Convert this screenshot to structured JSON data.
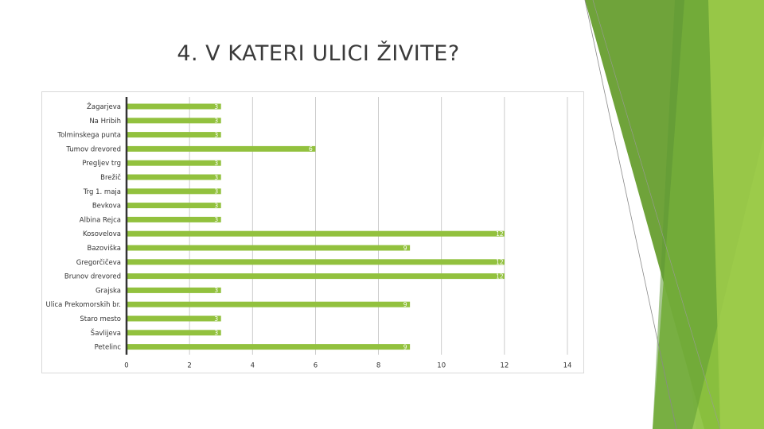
{
  "slide": {
    "title": "4. V KATERI ULICI ŽIVITE?"
  },
  "colors": {
    "bar": "#92c13e",
    "axis": "#333333",
    "grid": "#bfbfbf",
    "accent_dark": "#5e8f2f",
    "accent_light": "#a9d152"
  },
  "chart_data": {
    "type": "bar",
    "orientation": "horizontal",
    "title": "",
    "xlabel": "",
    "ylabel": "",
    "xlim": [
      0,
      14
    ],
    "x_ticks": [
      0,
      2,
      4,
      6,
      8,
      10,
      12,
      14
    ],
    "grid": true,
    "legend": "none",
    "categories": [
      "Žagarjeva",
      "Na Hribih",
      "Tolminskega punta",
      "Tumov drevored",
      "Pregljev trg",
      "Brežič",
      "Trg 1. maja",
      "Bevkova",
      "Albina Rejca",
      "Kosovelova",
      "Bazoviška",
      "Gregorčičeva",
      "Brunov drevored",
      "Grajska",
      "Ulica Prekomorskih br.",
      "Staro mesto",
      "Šavlijeva",
      "Petelinc"
    ],
    "values": [
      3,
      3,
      3,
      6,
      3,
      3,
      3,
      3,
      3,
      12,
      9,
      12,
      12,
      3,
      9,
      3,
      3,
      9
    ]
  }
}
